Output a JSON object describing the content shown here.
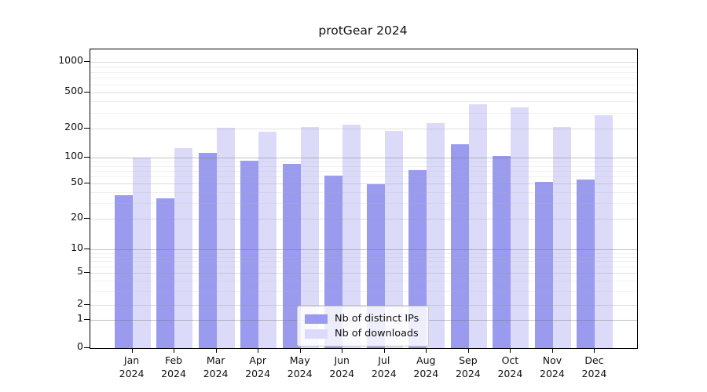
{
  "title": "protGear 2024",
  "colors": {
    "ips_bar": "#9a9bee",
    "downloads_bar": "#dbdbf9",
    "grid_major": "rgba(110,110,110,0.42)",
    "grid_minor_labeled": "rgba(150,150,150,0.30)",
    "grid_minor_faint": "rgba(175,175,175,0.18)",
    "axis": "#000000"
  },
  "legend": {
    "items": [
      {
        "label": "Nb of distinct IPs",
        "series": "ips"
      },
      {
        "label": "Nb of downloads",
        "series": "downloads"
      }
    ]
  },
  "y_axis": {
    "tick_labels": [
      "0",
      "1",
      "2",
      "5",
      "10",
      "20",
      "50",
      "100",
      "200",
      "500",
      "1000"
    ]
  },
  "x_axis": {
    "months": [
      "Jan",
      "Feb",
      "Mar",
      "Apr",
      "May",
      "Jun",
      "Jul",
      "Aug",
      "Sep",
      "Oct",
      "Nov",
      "Dec"
    ],
    "year": "2024"
  },
  "chart_data": {
    "type": "bar",
    "title": "protGear 2024",
    "categories": [
      "Jan 2024",
      "Feb 2024",
      "Mar 2024",
      "Apr 2024",
      "May 2024",
      "Jun 2024",
      "Jul 2024",
      "Aug 2024",
      "Sep 2024",
      "Oct 2024",
      "Nov 2024",
      "Dec 2024"
    ],
    "series": [
      {
        "name": "Nb of distinct IPs",
        "color": "#9a9bee",
        "values": [
          37,
          34,
          112,
          92,
          84,
          62,
          49,
          72,
          137,
          103,
          52,
          55
        ]
      },
      {
        "name": "Nb of downloads",
        "color": "#dbdbf9",
        "values": [
          100,
          125,
          205,
          187,
          210,
          222,
          190,
          228,
          370,
          345,
          207,
          280
        ]
      }
    ],
    "xlabel": "",
    "ylabel": "",
    "yscale": "symlog",
    "yticks": [
      0,
      1,
      2,
      5,
      10,
      20,
      50,
      100,
      200,
      500,
      1000
    ],
    "minor_gridlines": [
      3,
      4,
      6,
      7,
      8,
      9,
      30,
      40,
      60,
      70,
      80,
      90,
      300,
      400,
      600,
      700,
      800,
      900
    ],
    "ylim": [
      0,
      1400
    ],
    "grid": true,
    "legend_position": "lower center"
  }
}
